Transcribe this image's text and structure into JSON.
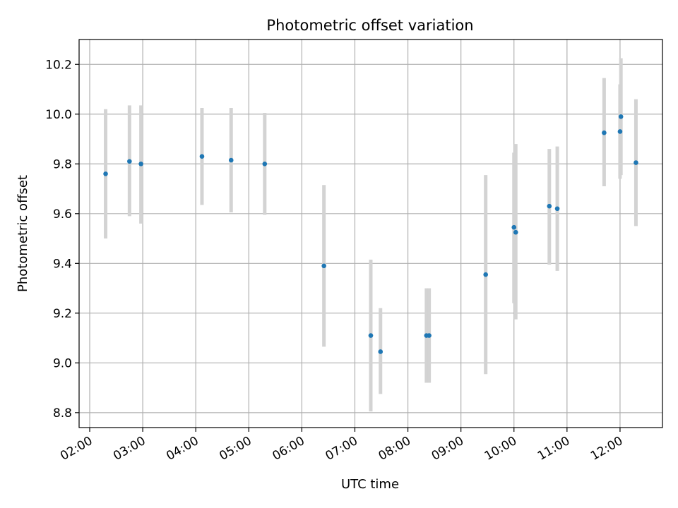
{
  "chart_data": {
    "type": "scatter",
    "title": "Photometric offset variation",
    "xlabel": "UTC time",
    "ylabel": "Photometric offset",
    "xlim": [
      "01:48",
      "12:48"
    ],
    "ylim": [
      8.74,
      10.3
    ],
    "grid": true,
    "x_ticks": [
      "02:00",
      "03:00",
      "04:00",
      "05:00",
      "06:00",
      "07:00",
      "08:00",
      "09:00",
      "10:00",
      "11:00",
      "12:00"
    ],
    "y_ticks": [
      "8.8",
      "9.0",
      "9.2",
      "9.4",
      "9.6",
      "9.8",
      "10.0",
      "10.2"
    ],
    "point_color": "#1f77b4",
    "errorbar_color": "#d3d3d3",
    "points": [
      {
        "x": "02:18",
        "y": 9.76,
        "ylow": 9.5,
        "yhigh": 10.02
      },
      {
        "x": "02:45",
        "y": 9.81,
        "ylow": 9.59,
        "yhigh": 10.035
      },
      {
        "x": "02:58",
        "y": 9.8,
        "ylow": 9.56,
        "yhigh": 10.035
      },
      {
        "x": "04:07",
        "y": 9.83,
        "ylow": 9.635,
        "yhigh": 10.025
      },
      {
        "x": "04:40",
        "y": 9.815,
        "ylow": 9.605,
        "yhigh": 10.025
      },
      {
        "x": "05:18",
        "y": 9.8,
        "ylow": 9.595,
        "yhigh": 10.005
      },
      {
        "x": "06:25",
        "y": 9.39,
        "ylow": 9.065,
        "yhigh": 9.715
      },
      {
        "x": "07:18",
        "y": 9.11,
        "ylow": 8.805,
        "yhigh": 9.415
      },
      {
        "x": "07:29",
        "y": 9.045,
        "ylow": 8.875,
        "yhigh": 9.22
      },
      {
        "x": "08:21",
        "y": 9.11,
        "ylow": 8.92,
        "yhigh": 9.3
      },
      {
        "x": "08:24",
        "y": 9.11,
        "ylow": 8.92,
        "yhigh": 9.3
      },
      {
        "x": "09:28",
        "y": 9.355,
        "ylow": 8.955,
        "yhigh": 9.755
      },
      {
        "x": "10:00",
        "y": 9.545,
        "ylow": 9.24,
        "yhigh": 9.845
      },
      {
        "x": "10:02",
        "y": 9.525,
        "ylow": 9.175,
        "yhigh": 9.88
      },
      {
        "x": "10:40",
        "y": 9.63,
        "ylow": 9.395,
        "yhigh": 9.86
      },
      {
        "x": "10:49",
        "y": 9.62,
        "ylow": 9.37,
        "yhigh": 9.87
      },
      {
        "x": "11:42",
        "y": 9.925,
        "ylow": 9.71,
        "yhigh": 10.145
      },
      {
        "x": "12:00",
        "y": 9.93,
        "ylow": 9.74,
        "yhigh": 10.12
      },
      {
        "x": "12:01",
        "y": 9.99,
        "ylow": 9.755,
        "yhigh": 10.225
      },
      {
        "x": "12:18",
        "y": 9.805,
        "ylow": 9.55,
        "yhigh": 10.06
      }
    ]
  }
}
